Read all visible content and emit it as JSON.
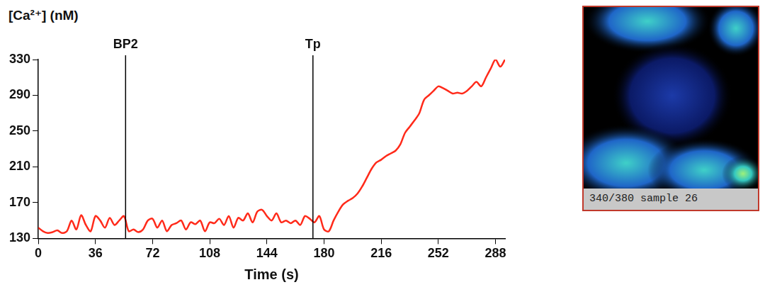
{
  "chart_data": {
    "type": "line",
    "y_label": "[Ca²⁺] (nM)",
    "x_label": "Time (s)",
    "x": [
      0,
      3,
      6,
      9,
      12,
      15,
      18,
      21,
      24,
      27,
      30,
      33,
      36,
      39,
      42,
      45,
      48,
      51,
      54,
      57,
      60,
      63,
      66,
      69,
      72,
      75,
      78,
      81,
      84,
      87,
      90,
      93,
      96,
      99,
      102,
      105,
      108,
      111,
      114,
      117,
      120,
      123,
      126,
      129,
      132,
      135,
      138,
      141,
      144,
      147,
      150,
      153,
      156,
      159,
      162,
      165,
      168,
      171,
      174,
      177,
      180,
      183,
      186,
      189,
      192,
      195,
      198,
      201,
      204,
      207,
      210,
      213,
      216,
      219,
      222,
      225,
      228,
      231,
      234,
      237,
      240,
      243,
      246,
      249,
      252,
      255,
      258,
      261,
      264,
      267,
      270,
      273,
      276,
      279,
      282,
      285,
      288,
      291,
      294
    ],
    "values": [
      142,
      138,
      136,
      137,
      139,
      136,
      138,
      150,
      140,
      156,
      145,
      138,
      155,
      150,
      142,
      153,
      145,
      150,
      155,
      138,
      140,
      137,
      140,
      150,
      152,
      142,
      150,
      138,
      145,
      147,
      150,
      140,
      148,
      146,
      150,
      138,
      148,
      147,
      152,
      145,
      155,
      142,
      153,
      150,
      158,
      148,
      160,
      162,
      155,
      150,
      158,
      148,
      150,
      147,
      150,
      145,
      155,
      152,
      148,
      155,
      140,
      138,
      150,
      160,
      168,
      172,
      175,
      180,
      188,
      198,
      208,
      215,
      218,
      222,
      225,
      228,
      235,
      248,
      255,
      262,
      270,
      285,
      290,
      295,
      300,
      298,
      295,
      292,
      293,
      292,
      295,
      300,
      305,
      300,
      310,
      320,
      330,
      322,
      330
    ],
    "color": "#ff2a1a",
    "xlim": [
      0,
      294
    ],
    "xticks": [
      0,
      36,
      72,
      108,
      144,
      180,
      216,
      252,
      288
    ],
    "ylim": [
      130,
      330
    ],
    "yticks": [
      130,
      170,
      210,
      250,
      290,
      330
    ],
    "grid": false,
    "annotations": [
      {
        "text": "BP2",
        "x": 55
      },
      {
        "text": "Tp",
        "x": 173
      }
    ]
  },
  "image_panel": {
    "caption": "340/380 sample 26"
  }
}
